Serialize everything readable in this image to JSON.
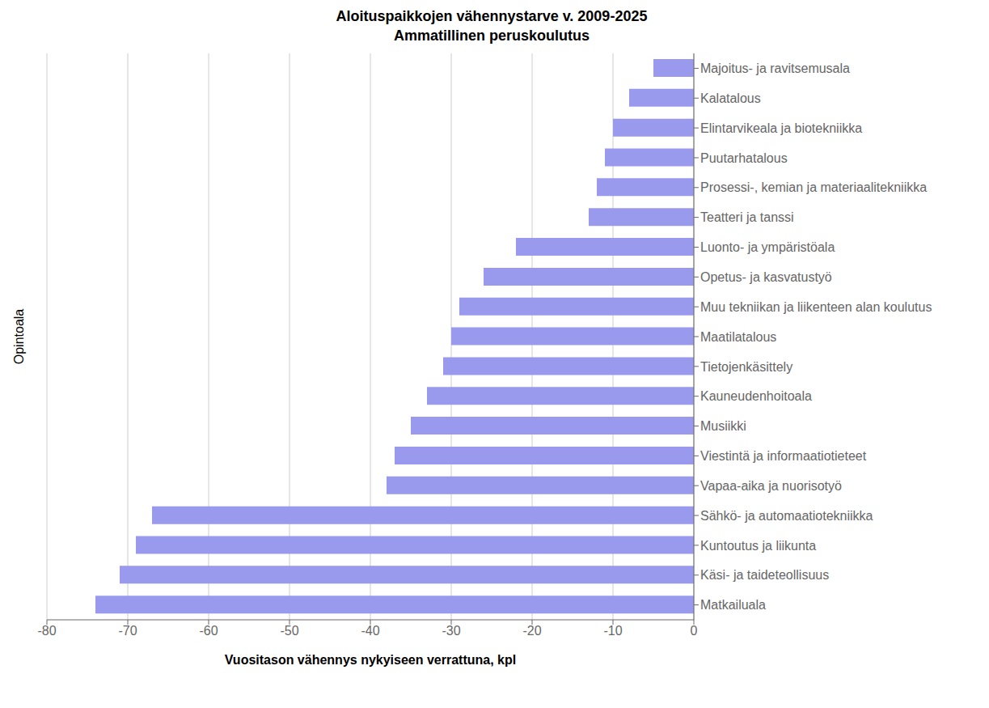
{
  "chart_data": {
    "type": "bar",
    "orientation": "horizontal",
    "title": "Aloituspaikkojen vähennystarve v. 2009-2025",
    "subtitle": "Ammatillinen peruskoulutus",
    "xlabel": "Vuositason vähennys nykyiseen verrattuna, kpl",
    "ylabel": "Opintoala",
    "categories": [
      "Matkailuala",
      "Käsi- ja taideteollisuus",
      "Kuntoutus ja liikunta",
      "Sähkö- ja automaatiotekniikka",
      "Vapaa-aika ja nuorisotyö",
      "Viestintä ja informaatiotieteet",
      "Musiikki",
      "Kauneudenhoitoala",
      "Tietojenkäsittely",
      "Maatilatalous",
      "Muu tekniikan ja liikenteen alan koulutus",
      "Opetus- ja kasvatustyö",
      "Luonto- ja ympäristöala",
      "Teatteri ja tanssi",
      "Prosessi-, kemian ja materiaalitekniikka",
      "Puutarhatalous",
      "Elintarvikeala ja biotekniikka",
      "Kalatalous",
      "Majoitus- ja ravitsemusala"
    ],
    "values": [
      -74,
      -71,
      -69,
      -67,
      -38,
      -37,
      -35,
      -33,
      -31,
      -30,
      -29,
      -26,
      -22,
      -13,
      -12,
      -11,
      -10,
      -8,
      -5
    ],
    "color": "#9999ee",
    "xlim": [
      -80,
      0
    ],
    "xticks": [
      -80,
      -70,
      -60,
      -50,
      -40,
      -30,
      -20,
      -10,
      0
    ],
    "grid": true
  }
}
